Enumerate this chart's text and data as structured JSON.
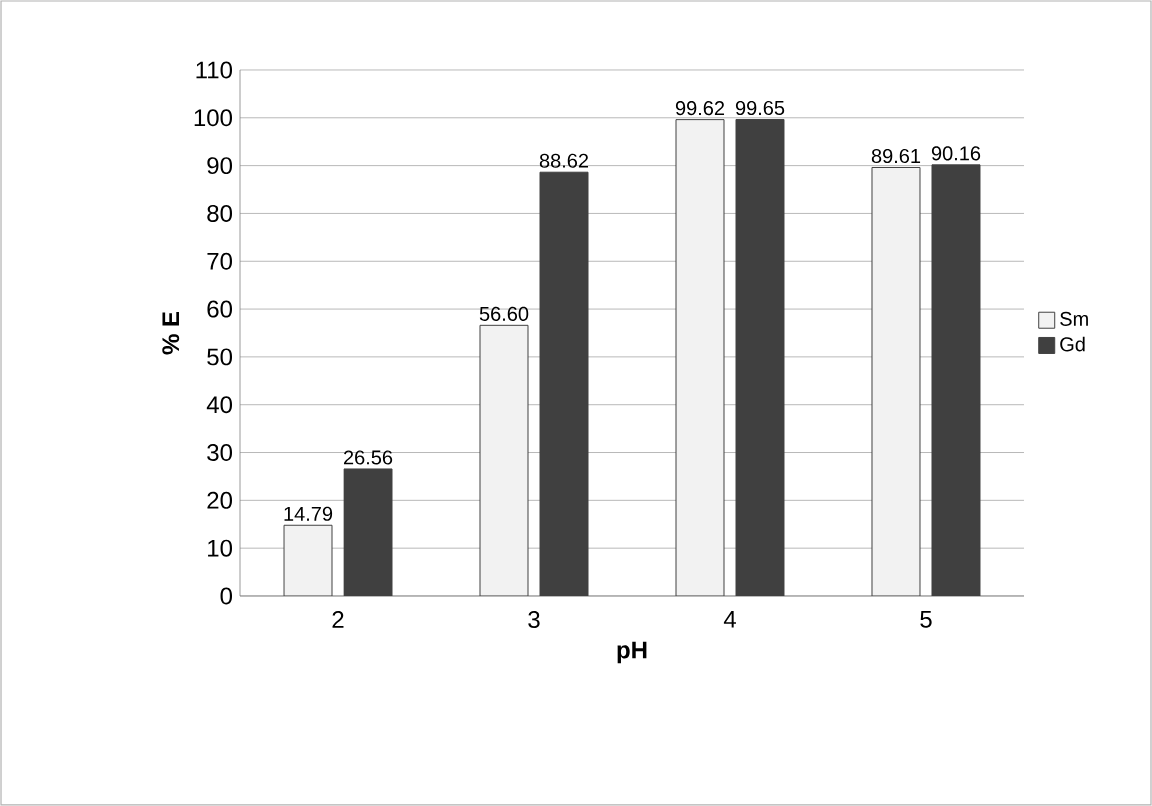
{
  "chart_data": {
    "type": "bar",
    "xlabel": "pH",
    "ylabel": "% E",
    "categories": [
      "2",
      "3",
      "4",
      "5"
    ],
    "series": [
      {
        "name": "Sm",
        "color": "#f2f2f2",
        "values": [
          14.79,
          56.6,
          99.62,
          89.61
        ],
        "value_labels": [
          "14.79",
          "56.60",
          "99.62",
          "89.61"
        ]
      },
      {
        "name": "Gd",
        "color": "#404040",
        "values": [
          26.56,
          88.62,
          99.65,
          90.16
        ],
        "value_labels": [
          "26.56",
          "88.62",
          "99.65",
          "90.16"
        ]
      }
    ],
    "ylim": [
      0,
      110
    ],
    "yticks": [
      0,
      10,
      20,
      30,
      40,
      50,
      60,
      70,
      80,
      90,
      100,
      110
    ],
    "grid": "y",
    "legend": "right"
  }
}
